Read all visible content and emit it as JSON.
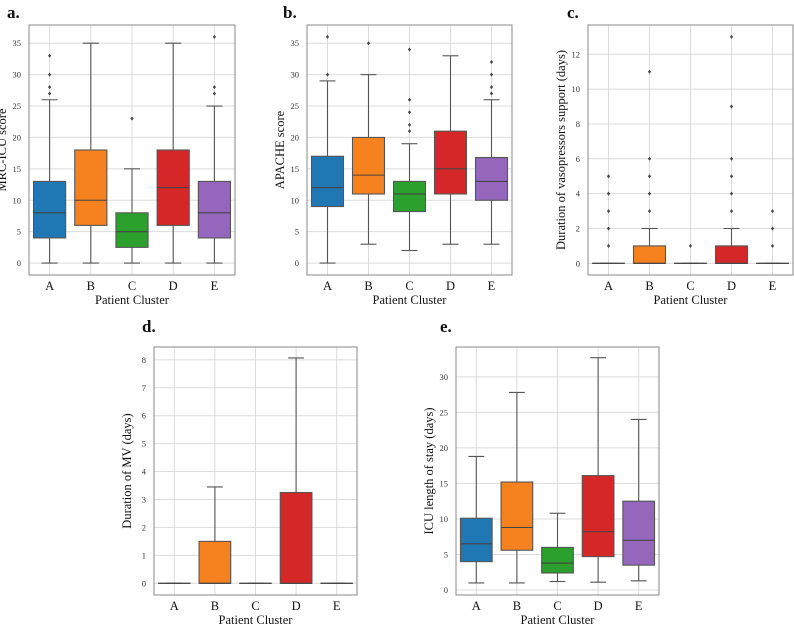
{
  "colors": {
    "A": "#1f77b4",
    "B": "#f5821f",
    "C": "#2ca02c",
    "D": "#d62728",
    "E": "#9467bd"
  },
  "chart_data": [
    {
      "panel": "a.",
      "type": "box",
      "categories": [
        "A",
        "B",
        "C",
        "D",
        "E"
      ],
      "xlabel": "Patient Cluster",
      "ylabel": "MRC-ICU score",
      "ylim": [
        -1.9,
        37.9
      ],
      "yticks": [
        0,
        5,
        10,
        15,
        20,
        25,
        30,
        35
      ],
      "grid": true,
      "boxes": [
        {
          "whislo": 0,
          "q1": 4,
          "med": 8,
          "q3": 13,
          "whishi": 26,
          "fliers": [
            27,
            28,
            30,
            33
          ]
        },
        {
          "whislo": 0,
          "q1": 6,
          "med": 10,
          "q3": 18,
          "whishi": 35,
          "fliers": []
        },
        {
          "whislo": 0,
          "q1": 2.5,
          "med": 5,
          "q3": 8,
          "whishi": 15,
          "fliers": [
            23
          ]
        },
        {
          "whislo": 0,
          "q1": 6,
          "med": 12,
          "q3": 18,
          "whishi": 35,
          "fliers": []
        },
        {
          "whislo": 0,
          "q1": 4,
          "med": 8,
          "q3": 13,
          "whishi": 25,
          "fliers": [
            27,
            28,
            36
          ]
        }
      ]
    },
    {
      "panel": "b.",
      "type": "box",
      "categories": [
        "A",
        "B",
        "C",
        "D",
        "E"
      ],
      "xlabel": "Patient Cluster",
      "ylabel": "APACHE score",
      "ylim": [
        -1.9,
        37.9
      ],
      "yticks": [
        0,
        5,
        10,
        15,
        20,
        25,
        30,
        35
      ],
      "grid": true,
      "boxes": [
        {
          "whislo": 0,
          "q1": 9,
          "med": 12,
          "q3": 17,
          "whishi": 29,
          "fliers": [
            30,
            36
          ]
        },
        {
          "whislo": 3,
          "q1": 11,
          "med": 14,
          "q3": 20,
          "whishi": 30,
          "fliers": [
            35
          ]
        },
        {
          "whislo": 2,
          "q1": 8.2,
          "med": 11,
          "q3": 13,
          "whishi": 19,
          "fliers": [
            21,
            22,
            24,
            26,
            34
          ]
        },
        {
          "whislo": 3,
          "q1": 11,
          "med": 15,
          "q3": 21,
          "whishi": 33,
          "fliers": []
        },
        {
          "whislo": 3,
          "q1": 10,
          "med": 13,
          "q3": 16.8,
          "whishi": 26,
          "fliers": [
            27,
            28,
            30,
            32
          ]
        }
      ]
    },
    {
      "panel": "c.",
      "type": "box",
      "categories": [
        "A",
        "B",
        "C",
        "D",
        "E"
      ],
      "xlabel": "Patient Cluster",
      "ylabel": "Duration of vasopressors support (days)",
      "ylim": [
        -0.67,
        13.68
      ],
      "yticks": [
        0,
        2,
        4,
        6,
        8,
        10,
        12
      ],
      "grid": true,
      "boxes": [
        {
          "whislo": 0,
          "q1": 0,
          "med": 0,
          "q3": 0,
          "whishi": 0,
          "fliers": [
            1,
            2,
            3,
            4,
            5
          ]
        },
        {
          "whislo": 0,
          "q1": 0,
          "med": 0,
          "q3": 1,
          "whishi": 2,
          "fliers": [
            3,
            4,
            5,
            6,
            11
          ]
        },
        {
          "whislo": 0,
          "q1": 0,
          "med": 0,
          "q3": 0,
          "whishi": 0,
          "fliers": [
            1
          ]
        },
        {
          "whislo": 0,
          "q1": 0,
          "med": 0,
          "q3": 1,
          "whishi": 2,
          "fliers": [
            3,
            4,
            5,
            6,
            9,
            13
          ]
        },
        {
          "whislo": 0,
          "q1": 0,
          "med": 0,
          "q3": 0,
          "whishi": 0,
          "fliers": [
            1,
            2,
            3
          ]
        }
      ]
    },
    {
      "panel": "d.",
      "type": "box",
      "categories": [
        "A",
        "B",
        "C",
        "D",
        "E"
      ],
      "xlabel": "Patient Cluster",
      "ylabel": "Duration of  MV (days)",
      "ylim": [
        -0.42,
        8.46
      ],
      "yticks": [
        0,
        1,
        2,
        3,
        4,
        5,
        6,
        7,
        8
      ],
      "grid": true,
      "boxes": [
        {
          "whislo": 0,
          "q1": 0,
          "med": 0,
          "q3": 0,
          "whishi": 0,
          "fliers": []
        },
        {
          "whislo": 0,
          "q1": 0,
          "med": 0,
          "q3": 1.5,
          "whishi": 3.45,
          "fliers": []
        },
        {
          "whislo": 0,
          "q1": 0,
          "med": 0,
          "q3": 0,
          "whishi": 0,
          "fliers": []
        },
        {
          "whislo": 0,
          "q1": 0,
          "med": 0,
          "q3": 3.25,
          "whishi": 8.07,
          "fliers": []
        },
        {
          "whislo": 0,
          "q1": 0,
          "med": 0,
          "q3": 0,
          "whishi": 0,
          "fliers": []
        }
      ]
    },
    {
      "panel": "e.",
      "type": "box",
      "categories": [
        "A",
        "B",
        "C",
        "D",
        "E"
      ],
      "xlabel": "Patient Cluster",
      "ylabel": "ICU length of stay (days)",
      "ylim": [
        -0.7,
        34.2
      ],
      "yticks": [
        0,
        5,
        10,
        15,
        20,
        25,
        30
      ],
      "grid": true,
      "boxes": [
        {
          "whislo": 1,
          "q1": 4,
          "med": 6.5,
          "q3": 10.1,
          "whishi": 18.8,
          "fliers": []
        },
        {
          "whislo": 1,
          "q1": 5.6,
          "med": 8.8,
          "q3": 15.2,
          "whishi": 27.8,
          "fliers": []
        },
        {
          "whislo": 1.2,
          "q1": 2.4,
          "med": 3.8,
          "q3": 6,
          "whishi": 10.8,
          "fliers": []
        },
        {
          "whislo": 1.1,
          "q1": 4.7,
          "med": 8.2,
          "q3": 16.1,
          "whishi": 32.7,
          "fliers": []
        },
        {
          "whislo": 1.3,
          "q1": 3.5,
          "med": 7,
          "q3": 12.5,
          "whishi": 24,
          "fliers": []
        }
      ]
    }
  ]
}
